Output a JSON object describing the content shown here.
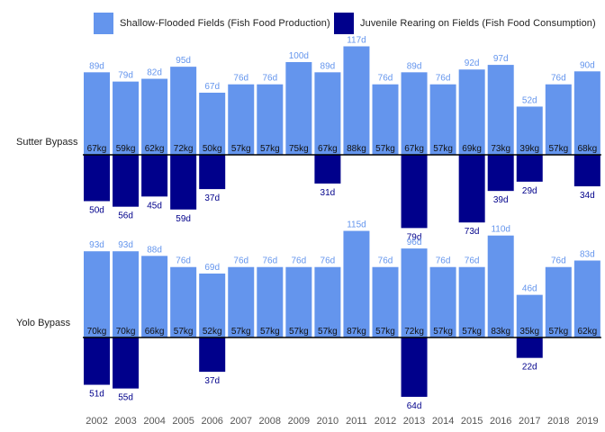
{
  "chart_data": {
    "type": "bar",
    "categories": [
      "2002",
      "2003",
      "2004",
      "2005",
      "2006",
      "2007",
      "2008",
      "2009",
      "2010",
      "2011",
      "2012",
      "2013",
      "2014",
      "2015",
      "2016",
      "2017",
      "2018",
      "2019"
    ],
    "legend": {
      "placement": "top",
      "items": [
        {
          "label": "Shallow-Flooded Fields (Fish Food Production)",
          "color": "#6495ED"
        },
        {
          "label": "Juvenile Rearing on Fields (Fish Food Consumption)",
          "color": "#00008B"
        }
      ]
    },
    "panels": [
      {
        "name": "Sutter Bypass",
        "production_days": [
          89,
          79,
          82,
          95,
          67,
          76,
          76,
          100,
          89,
          117,
          76,
          89,
          76,
          92,
          97,
          52,
          76,
          90
        ],
        "production_kg": [
          67,
          59,
          62,
          72,
          50,
          57,
          57,
          75,
          67,
          88,
          57,
          67,
          57,
          69,
          73,
          39,
          57,
          68
        ],
        "consumption_days": [
          50,
          56,
          45,
          59,
          37,
          null,
          null,
          null,
          31,
          null,
          null,
          79,
          null,
          73,
          39,
          29,
          null,
          34
        ]
      },
      {
        "name": "Yolo Bypass",
        "production_days": [
          93,
          93,
          88,
          76,
          69,
          76,
          76,
          76,
          76,
          115,
          76,
          96,
          76,
          76,
          110,
          46,
          76,
          83
        ],
        "production_kg": [
          70,
          70,
          66,
          57,
          52,
          57,
          57,
          57,
          57,
          87,
          57,
          72,
          57,
          57,
          83,
          35,
          57,
          62
        ],
        "consumption_days": [
          51,
          55,
          null,
          null,
          37,
          null,
          null,
          null,
          null,
          null,
          null,
          64,
          null,
          null,
          null,
          22,
          null,
          null
        ]
      }
    ],
    "day_suffix": "d",
    "kg_suffix": "kg",
    "colors": {
      "production": "#6495ED",
      "consumption": "#00008B",
      "baseline": "#000000",
      "year_label": "#555555",
      "kg_label": "#111111"
    }
  }
}
